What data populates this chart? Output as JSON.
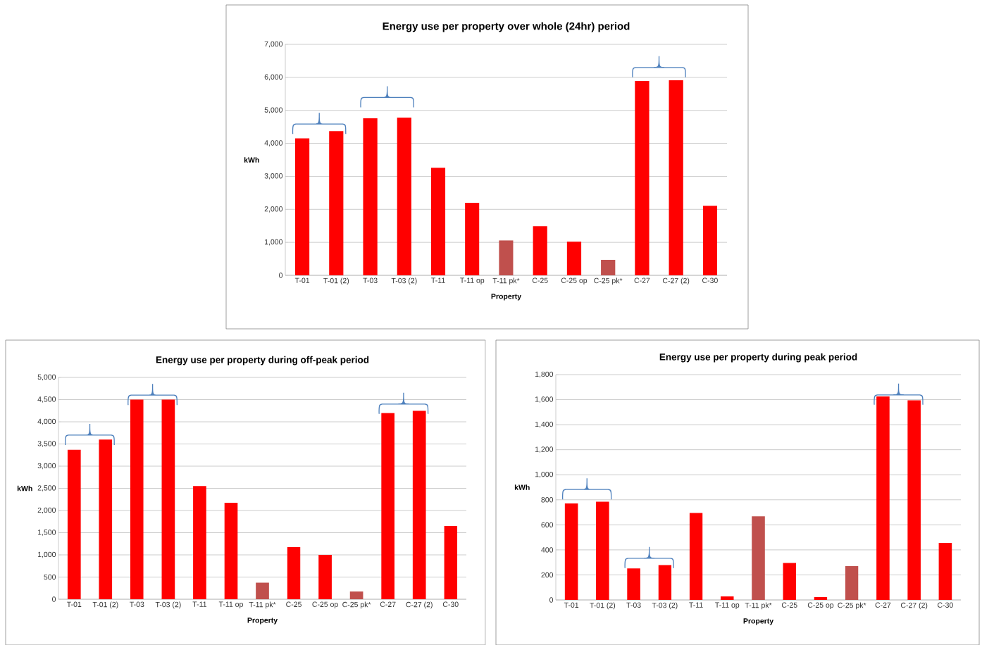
{
  "chart_data": [
    {
      "type": "bar",
      "title": "Energy use per property over whole (24hr) period",
      "xlabel": "Property",
      "ylabel": "kWh",
      "categories": [
        "T-01",
        "T-01 (2)",
        "T-03",
        "T-03 (2)",
        "T-11",
        "T-11 op",
        "T-11 pk*",
        "C-25",
        "C-25 op",
        "C-25 pk*",
        "C-27",
        "C-27 (2)",
        "C-30"
      ],
      "values": [
        4150,
        4370,
        4760,
        4780,
        3260,
        2200,
        1060,
        1490,
        1020,
        470,
        5890,
        5910,
        2110
      ],
      "colors": [
        "#ff0000",
        "#ff0000",
        "#ff0000",
        "#ff0000",
        "#ff0000",
        "#ff0000",
        "#c0504d",
        "#ff0000",
        "#ff0000",
        "#c0504d",
        "#ff0000",
        "#ff0000",
        "#ff0000"
      ],
      "ylim": [
        0,
        7000
      ],
      "yticks": [
        0,
        {
          "value": 1000,
          "label": "1,000"
        },
        {
          "value": 2000,
          "label": "2,000"
        },
        {
          "value": 3000,
          "label": "3,000"
        },
        {
          "value": 4000,
          "label": "4,000"
        },
        {
          "value": 5000,
          "label": "5,000"
        },
        {
          "value": 6000,
          "label": "6,000"
        },
        {
          "value": 7000,
          "label": "7,000"
        }
      ],
      "grid": "y"
    },
    {
      "type": "bar",
      "title": "Energy use per property during off-peak period",
      "xlabel": "Property",
      "ylabel": "kWh",
      "categories": [
        "T-01",
        "T-01 (2)",
        "T-03",
        "T-03 (2)",
        "T-11",
        "T-11 op",
        "T-11 pk*",
        "C-25",
        "C-25 op",
        "C-25 pk*",
        "C-27",
        "C-27 (2)",
        "C-30"
      ],
      "values": [
        3375,
        3600,
        4500,
        4500,
        2550,
        2175,
        375,
        1175,
        1000,
        175,
        4200,
        4250,
        1650
      ],
      "colors": [
        "#ff0000",
        "#ff0000",
        "#ff0000",
        "#ff0000",
        "#ff0000",
        "#ff0000",
        "#c0504d",
        "#ff0000",
        "#ff0000",
        "#c0504d",
        "#ff0000",
        "#ff0000",
        "#ff0000"
      ],
      "ylim": [
        0,
        5000
      ],
      "yticks": [
        0,
        500,
        {
          "value": 1000,
          "label": "1,000"
        },
        {
          "value": 1500,
          "label": "1,500"
        },
        {
          "value": 2000,
          "label": "2,000"
        },
        {
          "value": 2500,
          "label": "2,500"
        },
        {
          "value": 3000,
          "label": "3,000"
        },
        {
          "value": 3500,
          "label": "3,500"
        },
        {
          "value": 4000,
          "label": "4,000"
        },
        {
          "value": 4500,
          "label": "4,500"
        },
        {
          "value": 5000,
          "label": "5,000"
        }
      ],
      "grid": "y"
    },
    {
      "type": "bar",
      "title": "Energy use per property during peak period",
      "xlabel": "Property",
      "ylabel": "kWh",
      "categories": [
        "T-01",
        "T-01 (2)",
        "T-03",
        "T-03 (2)",
        "T-11",
        "T-11 op",
        "T-11 pk*",
        "C-25",
        "C-25 op",
        "C-25 pk*",
        "C-27",
        "C-27 (2)",
        "C-30"
      ],
      "values": [
        772,
        785,
        252,
        278,
        695,
        28,
        668,
        295,
        22,
        270,
        1625,
        1595,
        455
      ],
      "colors": [
        "#ff0000",
        "#ff0000",
        "#ff0000",
        "#ff0000",
        "#ff0000",
        "#ff0000",
        "#c0504d",
        "#ff0000",
        "#ff0000",
        "#c0504d",
        "#ff0000",
        "#ff0000",
        "#ff0000"
      ],
      "ylim": [
        0,
        1800
      ],
      "yticks": [
        0,
        200,
        400,
        600,
        800,
        {
          "value": 1000,
          "label": "1,000"
        },
        {
          "value": 1200,
          "label": "1,200"
        },
        {
          "value": 1400,
          "label": "1,400"
        },
        {
          "value": 1600,
          "label": "1,600"
        },
        {
          "value": 1800,
          "label": "1,800"
        }
      ],
      "grid": "y"
    }
  ]
}
